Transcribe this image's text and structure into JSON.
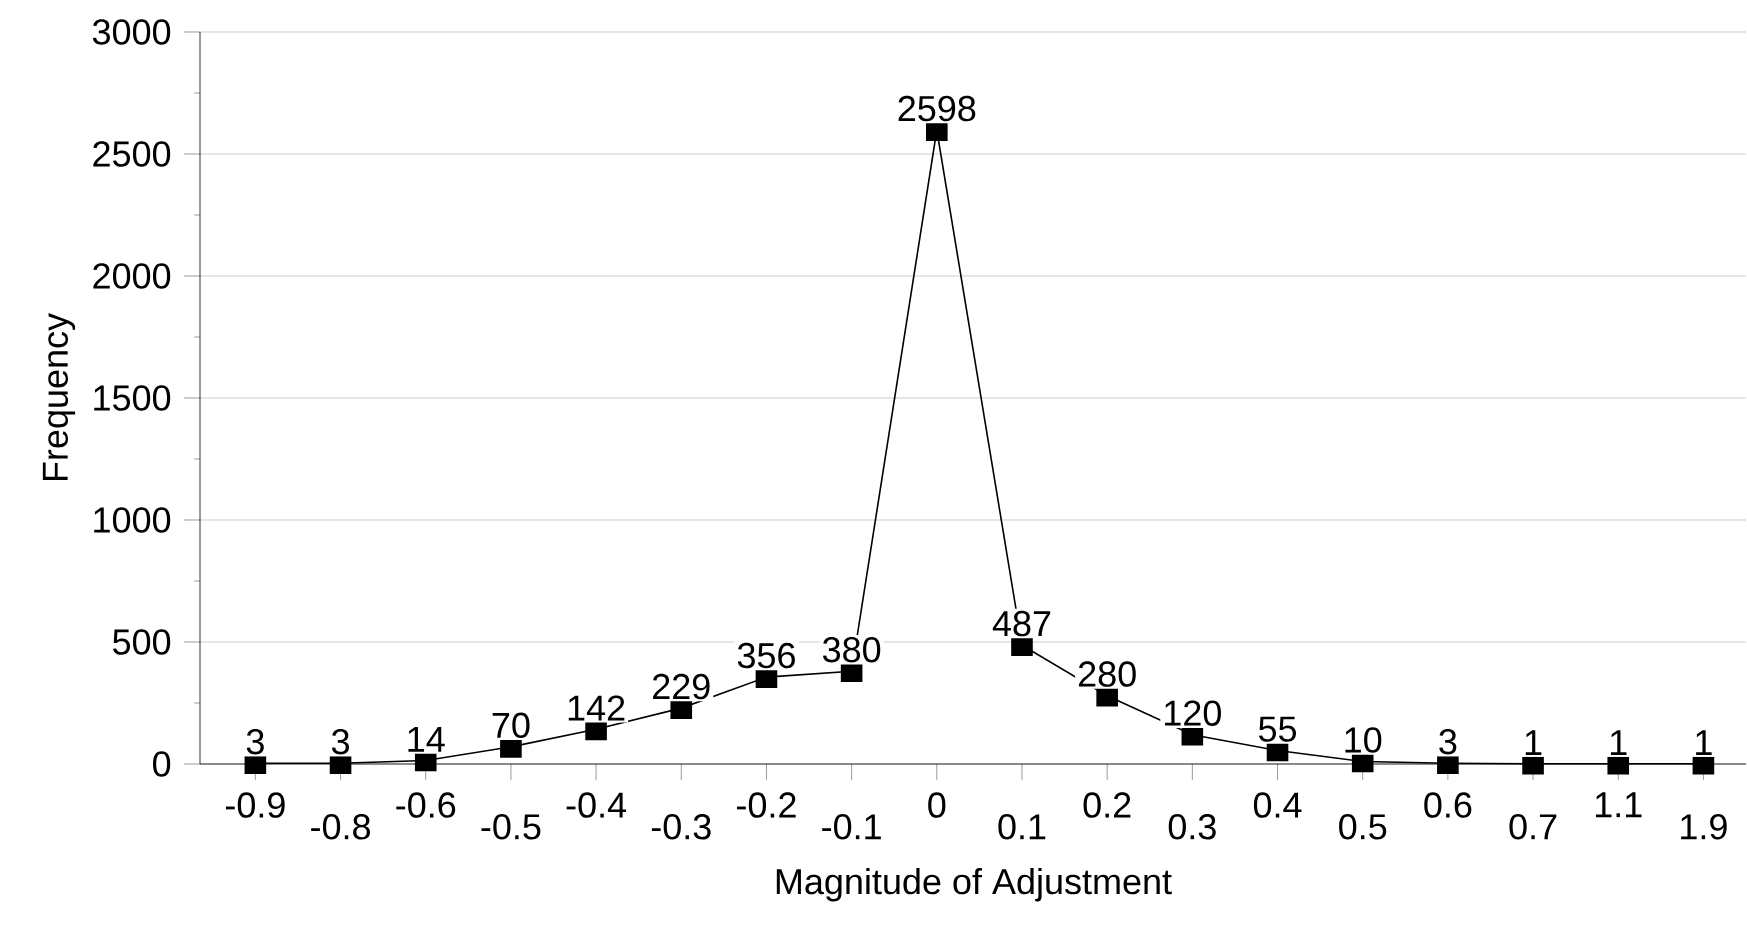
{
  "chart_data": {
    "type": "line",
    "xlabel": "Magnitude of Adjustment",
    "ylabel": "Frequency",
    "categories": [
      "-0.9",
      "-0.8",
      "-0.6",
      "-0.5",
      "-0.4",
      "-0.3",
      "-0.2",
      "-0.1",
      "0",
      "0.1",
      "0.2",
      "0.3",
      "0.4",
      "0.5",
      "0.6",
      "0.7",
      "1.1",
      "1.9"
    ],
    "values": [
      3,
      3,
      14,
      70,
      142,
      229,
      356,
      380,
      2598,
      487,
      280,
      120,
      55,
      10,
      3,
      1,
      1,
      1
    ],
    "color": "#000000",
    "marker": "square",
    "data_labels": true,
    "grid": "y",
    "ylim": [
      0,
      3000
    ],
    "yticks": [
      0,
      500,
      1000,
      1500,
      2000,
      2500,
      3000
    ]
  }
}
